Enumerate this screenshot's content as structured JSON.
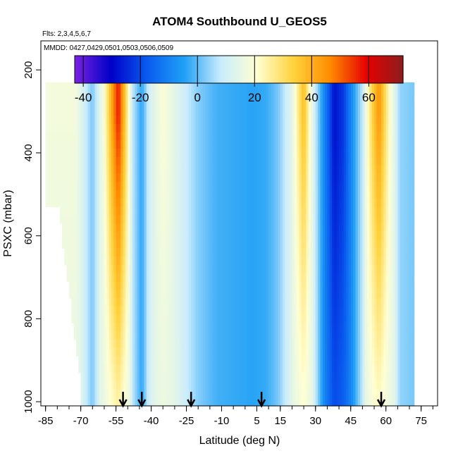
{
  "chart_data": {
    "type": "heatmap",
    "title": "ATOM4 Southbound U_GEOS5",
    "flights_note": "Flts: 2,3,4,5,6,7",
    "dates_note": "MMDD: 0427,0429,0501,0503,0506,0509",
    "xlabel": "Latitude (deg N)",
    "ylabel": "PSXC (mbar)",
    "xlim": [
      -87,
      82
    ],
    "ylim": [
      1010,
      130
    ],
    "x_ticks": [
      -85,
      -70,
      -55,
      -40,
      -25,
      -10,
      5,
      15,
      30,
      45,
      60,
      75
    ],
    "x_tick_labels": [
      "-85",
      "-70",
      "-55",
      "-40",
      "-25",
      "-10",
      "5",
      "15",
      "30",
      "45",
      "60",
      "75"
    ],
    "y_ticks": [
      200,
      400,
      600,
      800,
      1000
    ],
    "y_tick_labels": [
      "200",
      "400",
      "600",
      "800",
      "1000"
    ],
    "colorbar": {
      "min": -43,
      "max": 72,
      "ticks": [
        -40,
        -20,
        0,
        20,
        40,
        60
      ],
      "tick_labels": [
        "-40",
        "-20",
        "0",
        "20",
        "40",
        "60"
      ],
      "colors": [
        "#7b22e0",
        "#0000c8",
        "#0a5cf0",
        "#1fa0f5",
        "#c9ecfd",
        "#ffffd2",
        "#ffd23c",
        "#ff8c00",
        "#e60000",
        "#8c1e1e"
      ]
    },
    "profile_latitudes": [
      -52,
      -44,
      -23,
      7,
      58
    ],
    "wind_field": [
      {
        "lat": -72,
        "u": 18
      },
      {
        "lat": -65,
        "u": 2
      },
      {
        "lat": -60,
        "u": 20
      },
      {
        "lat": -57,
        "u": 40
      },
      {
        "lat": -54,
        "u": 58
      },
      {
        "lat": -51,
        "u": 34
      },
      {
        "lat": -48,
        "u": 8
      },
      {
        "lat": -44,
        "u": -4
      },
      {
        "lat": -41,
        "u": 10
      },
      {
        "lat": -35,
        "u": 20
      },
      {
        "lat": -28,
        "u": 12
      },
      {
        "lat": -20,
        "u": 3
      },
      {
        "lat": -12,
        "u": -2
      },
      {
        "lat": -5,
        "u": -3
      },
      {
        "lat": 3,
        "u": -4
      },
      {
        "lat": 9,
        "u": -3
      },
      {
        "lat": 14,
        "u": 2
      },
      {
        "lat": 20,
        "u": 14
      },
      {
        "lat": 25,
        "u": 38
      },
      {
        "lat": 28,
        "u": 18
      },
      {
        "lat": 33,
        "u": -6
      },
      {
        "lat": 38,
        "u": -28
      },
      {
        "lat": 42,
        "u": -22
      },
      {
        "lat": 46,
        "u": -6
      },
      {
        "lat": 50,
        "u": 8
      },
      {
        "lat": 54,
        "u": 32
      },
      {
        "lat": 57,
        "u": 45
      },
      {
        "lat": 61,
        "u": 24
      },
      {
        "lat": 66,
        "u": 4
      },
      {
        "lat": 72,
        "u": 2
      }
    ]
  }
}
